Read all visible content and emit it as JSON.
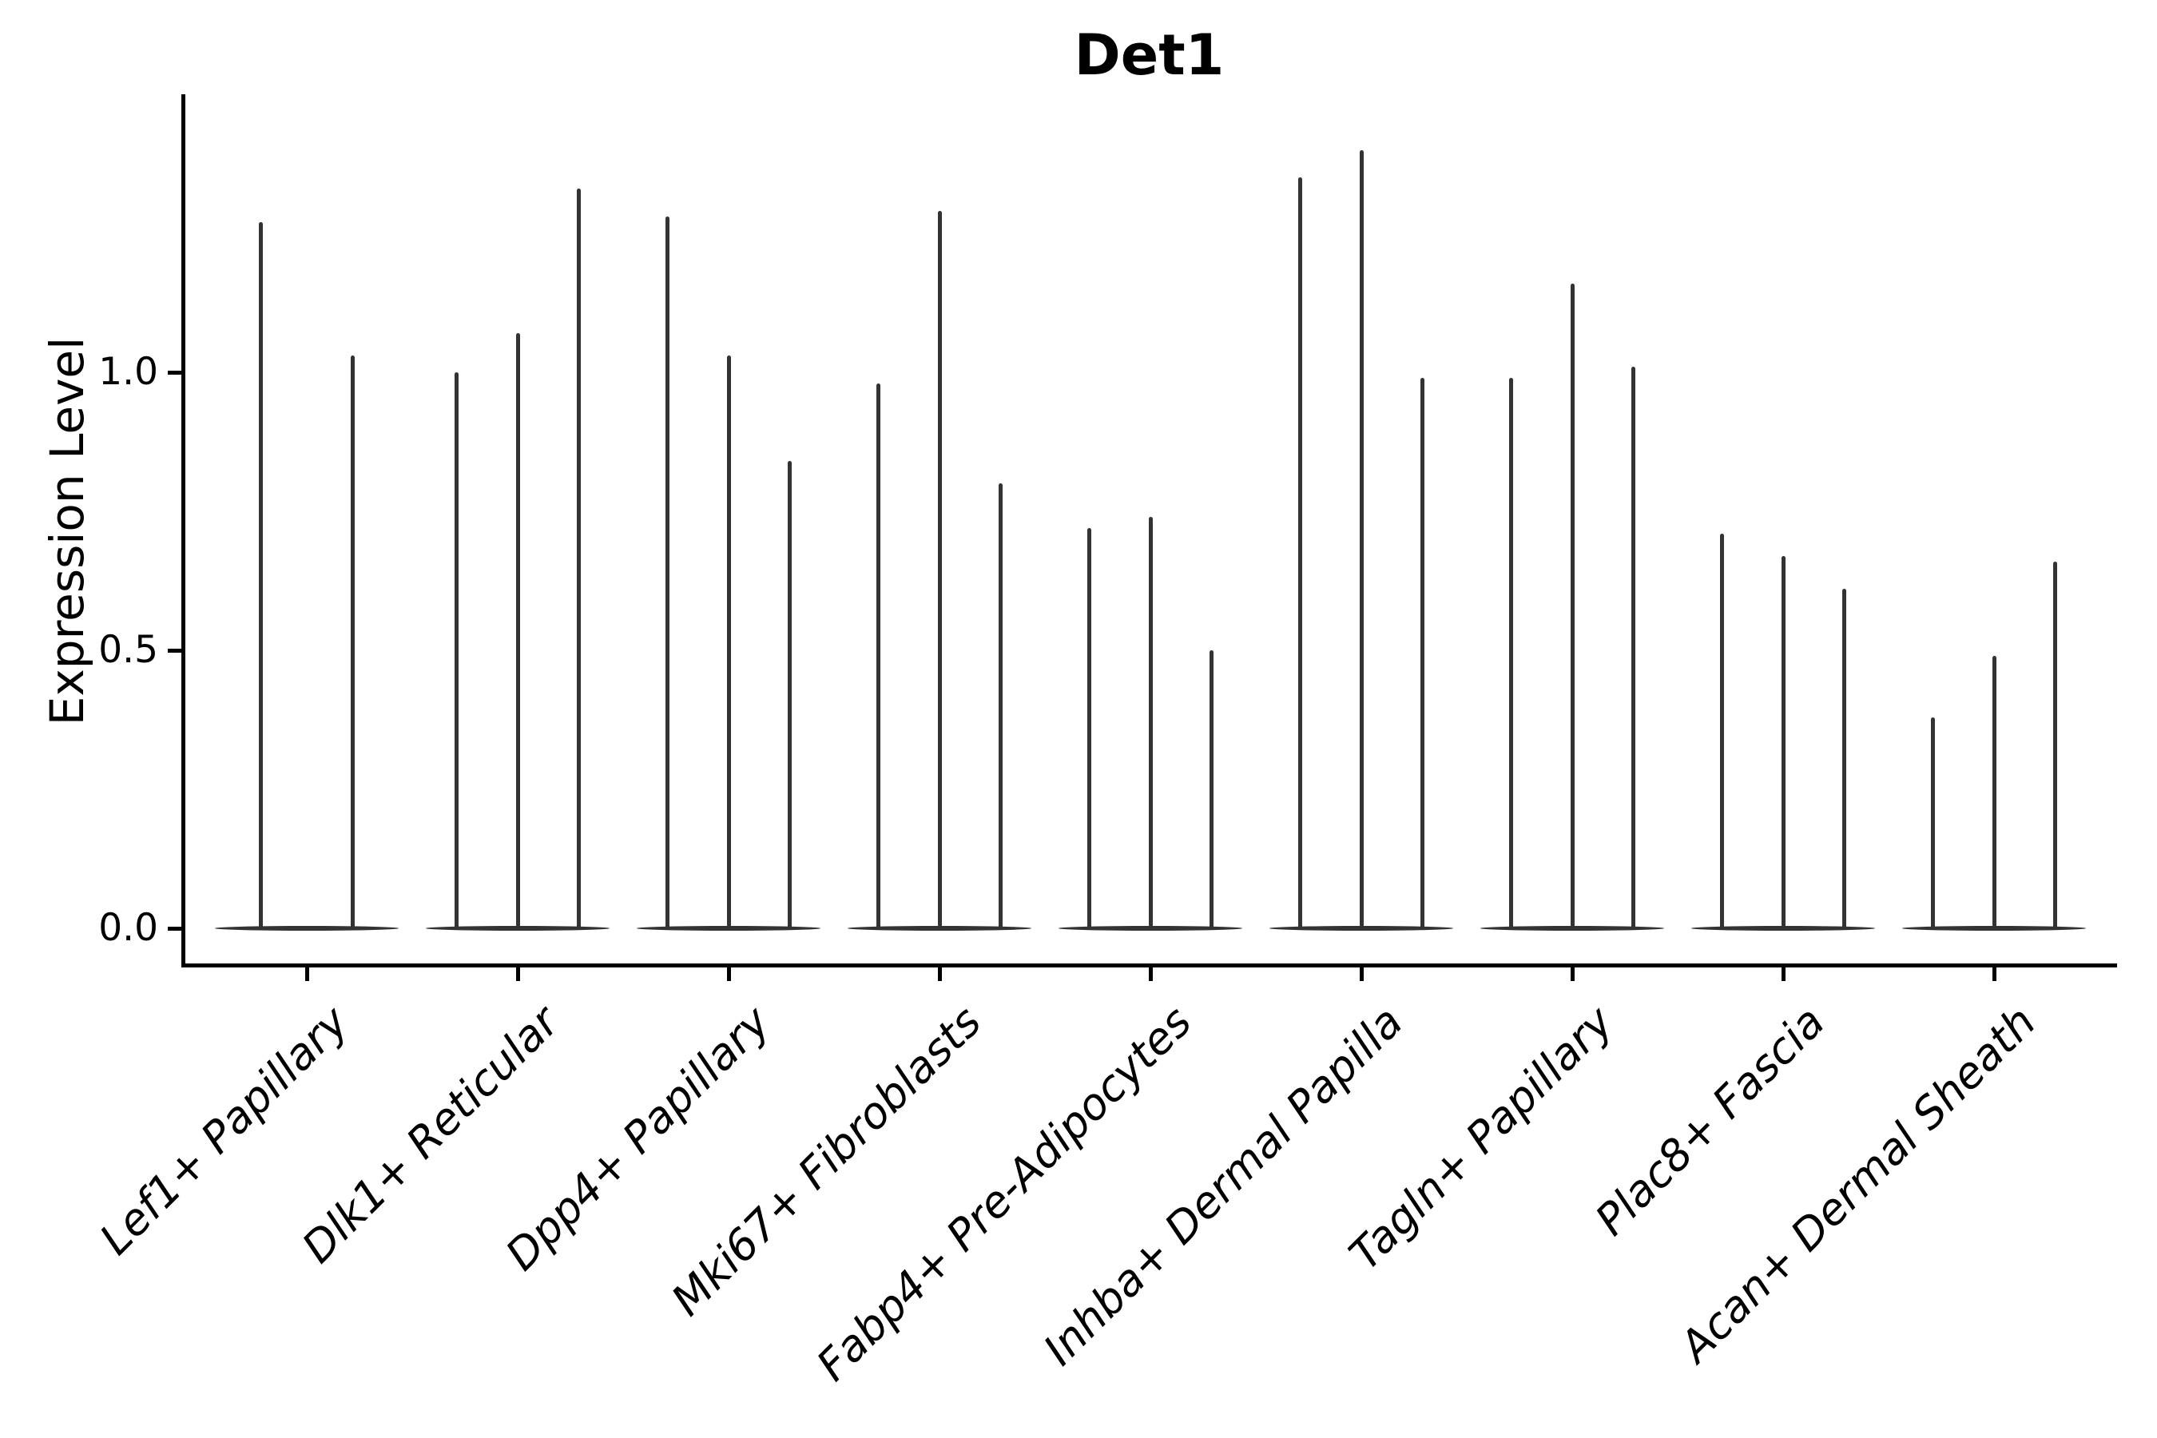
{
  "chart_data": {
    "type": "violin",
    "title": "Det1",
    "ylabel": "Expression Level",
    "xlabel": "",
    "categories": [
      "Lef1+ Papillary",
      "Dlk1+ Reticular",
      "Dpp4+ Papillary",
      "Mki67+ Fibroblasts",
      "Fabp4+ Pre-Adipocytes",
      "Inhba+ Dermal Papilla",
      "Tagln+ Papillary",
      "Plac8+ Fascia",
      "Acan+ Dermal Sheath"
    ],
    "series_description": "Each category shows narrow collapsed violins (one per sample); the bulk of cells sit at 0 expression (flat lens at baseline) with a thin spike reaching the listed maximum expression value.",
    "values": [
      [
        1.27,
        1.03
      ],
      [
        1.0,
        1.07,
        1.33
      ],
      [
        1.28,
        1.03,
        0.84
      ],
      [
        0.98,
        1.29,
        0.8
      ],
      [
        0.72,
        0.74,
        0.5
      ],
      [
        1.35,
        1.4,
        0.99
      ],
      [
        0.99,
        1.16,
        1.01
      ],
      [
        0.71,
        0.67,
        0.61
      ],
      [
        0.38,
        0.49,
        0.66
      ]
    ],
    "y_ticks": [
      {
        "label": "0.0",
        "value": 0.0
      },
      {
        "label": "0.5",
        "value": 0.5
      },
      {
        "label": "1.0",
        "value": 1.0
      }
    ],
    "ylim": [
      -0.06,
      1.5
    ],
    "grid": false,
    "legend": "none",
    "colors": {
      "violin": "#333333",
      "axis": "#000000",
      "text": "#000000",
      "background": "#ffffff"
    },
    "x_tick_label_rotation_deg": 45,
    "x_tick_label_style": "italic"
  }
}
